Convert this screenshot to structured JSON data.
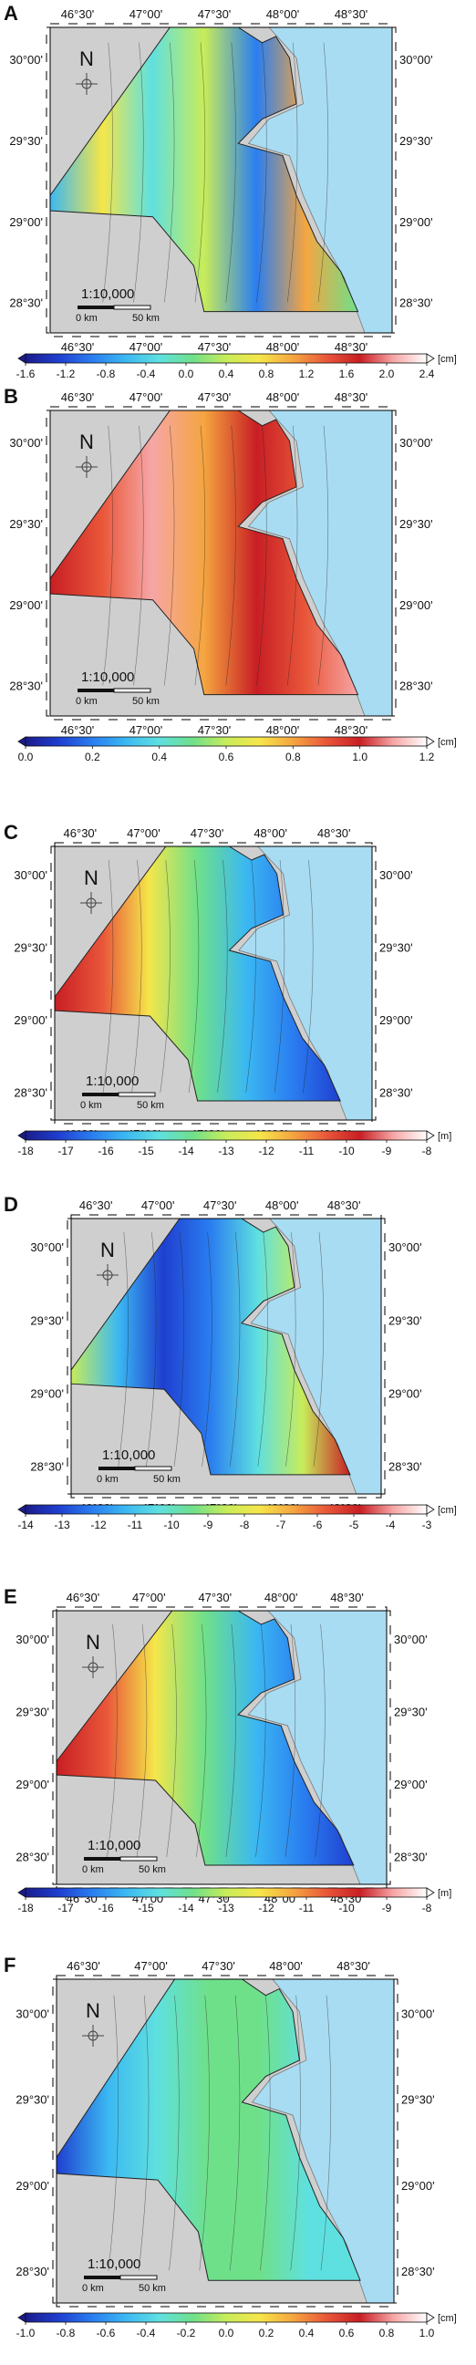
{
  "panels": [
    {
      "letter": "A",
      "lon_top": [
        "46°30'",
        "47°00'",
        "47°30'",
        "48°00'",
        "48°30'"
      ],
      "lon_bottom": [
        "46°30'",
        "47°00'",
        "47°30'",
        "48°00'",
        "48°30'"
      ],
      "lat_left": [
        "30°00'",
        "29°30'",
        "29°00'",
        "28°30'"
      ],
      "lat_right": [
        "30°00'",
        "29°30'",
        "29°00'",
        "28°30'"
      ],
      "north_label": "N",
      "scale_text": "1:10,000",
      "scale_0": "0 km",
      "scale_50": "50 km",
      "colorbar": {
        "unit": "[cm]",
        "ticks": [
          "-1.6",
          "-1.2",
          "-0.8",
          "-0.4",
          "0.0",
          "0.4",
          "0.8",
          "1.2",
          "1.6",
          "2.0",
          "2.4"
        ],
        "palette": "rainbow",
        "range": [
          -1.6,
          2.4
        ]
      }
    },
    {
      "letter": "B",
      "lon_top": [
        "46°30'",
        "47°00'",
        "47°30'",
        "48°00'",
        "48°30'"
      ],
      "lon_bottom": [
        "46°30'",
        "47°00'",
        "47°30'",
        "48°00'",
        "48°30'"
      ],
      "lat_left": [
        "30°00'",
        "29°30'",
        "29°00'",
        "28°30'"
      ],
      "lat_right": [
        "30°00'",
        "29°30'",
        "29°00'",
        "28°30'"
      ],
      "north_label": "N",
      "scale_text": "1:10,000",
      "scale_0": "0 km",
      "scale_50": "50 km",
      "colorbar": {
        "unit": "[cm]",
        "ticks": [
          "0.0",
          "0.2",
          "0.4",
          "0.6",
          "0.8",
          "1.0",
          "1.2"
        ],
        "palette": "rainbow",
        "range": [
          0.0,
          1.3
        ]
      }
    },
    {
      "letter": "C",
      "lon_top": [
        "46°30'",
        "47°00'",
        "47°30'",
        "48°00'",
        "48°30'"
      ],
      "lon_bottom": [
        "46°30'",
        "47°00'",
        "47°30'",
        "48°00'",
        "48°30'"
      ],
      "lat_left": [
        "30°00'",
        "29°30'",
        "29°00'",
        "28°30'"
      ],
      "lat_right": [
        "30°00'",
        "29°30'",
        "29°00'",
        "28°30'"
      ],
      "north_label": "N",
      "scale_text": "1:10,000",
      "scale_0": "0 km",
      "scale_50": "50 km",
      "colorbar": {
        "unit": "[m]",
        "ticks": [
          "-18",
          "-17",
          "-16",
          "-15",
          "-14",
          "-13",
          "-12",
          "-11",
          "-10",
          "-9",
          "-8"
        ],
        "palette": "rainbow",
        "range": [
          -18,
          -8
        ]
      }
    },
    {
      "letter": "D",
      "lon_top": [
        "46°30'",
        "47°00'",
        "47°30'",
        "48°00'",
        "48°30'"
      ],
      "lon_bottom": [
        "46°30'",
        "47°00'",
        "47°30'",
        "48°00'",
        "48°30'"
      ],
      "lat_left": [
        "30°00'",
        "29°30'",
        "29°00'",
        "28°30'"
      ],
      "lat_right": [
        "30°00'",
        "29°30'",
        "29°00'",
        "28°30'"
      ],
      "north_label": "N",
      "scale_text": "1:10,000",
      "scale_0": "0 km",
      "scale_50": "50 km",
      "colorbar": {
        "unit": "[cm]",
        "ticks": [
          "-14",
          "-13",
          "-12",
          "-11",
          "-10",
          "-9",
          "-8",
          "-7",
          "-6",
          "-5",
          "-4",
          "-3"
        ],
        "palette": "rainbow",
        "range": [
          -14,
          -3
        ]
      }
    },
    {
      "letter": "E",
      "lon_top": [
        "46°30'",
        "47°00'",
        "47°30'",
        "48°00'",
        "48°30'"
      ],
      "lon_bottom": [
        "46°30'",
        "47°00'",
        "47°30'",
        "48°00'",
        "48°30'"
      ],
      "lat_left": [
        "30°00'",
        "29°30'",
        "29°00'",
        "28°30'"
      ],
      "lat_right": [
        "30°00'",
        "29°30'",
        "29°00'",
        "28°30'"
      ],
      "north_label": "N",
      "scale_text": "1:10,000",
      "scale_0": "0 km",
      "scale_50": "50 km",
      "colorbar": {
        "unit": "[m]",
        "ticks": [
          "-18",
          "-17",
          "-16",
          "-15",
          "-14",
          "-13",
          "-12",
          "-11",
          "-10",
          "-9",
          "-8"
        ],
        "palette": "rainbow",
        "range": [
          -18,
          -8
        ]
      }
    },
    {
      "letter": "F",
      "lon_top": [
        "46°30'",
        "47°00'",
        "47°30'",
        "48°00'",
        "48°30'"
      ],
      "lon_bottom": [
        "46°30'",
        "47°00'",
        "47°30'",
        "48°00'",
        "48°30'"
      ],
      "lat_left": [
        "30°00'",
        "29°30'",
        "29°00'",
        "28°30'"
      ],
      "lat_right": [
        "30°00'",
        "29°30'",
        "29°00'",
        "28°30'"
      ],
      "north_label": "N",
      "scale_text": "1:10,000",
      "scale_0": "0 km",
      "scale_50": "50 km",
      "colorbar": {
        "unit": "[cm]",
        "ticks": [
          "-1.0",
          "-0.8",
          "-0.6",
          "-0.4",
          "-0.2",
          "0.0",
          "0.2",
          "0.4",
          "0.6",
          "0.8",
          "1.0"
        ],
        "palette": "rainbow",
        "range": [
          -1.0,
          1.0
        ]
      }
    }
  ]
}
